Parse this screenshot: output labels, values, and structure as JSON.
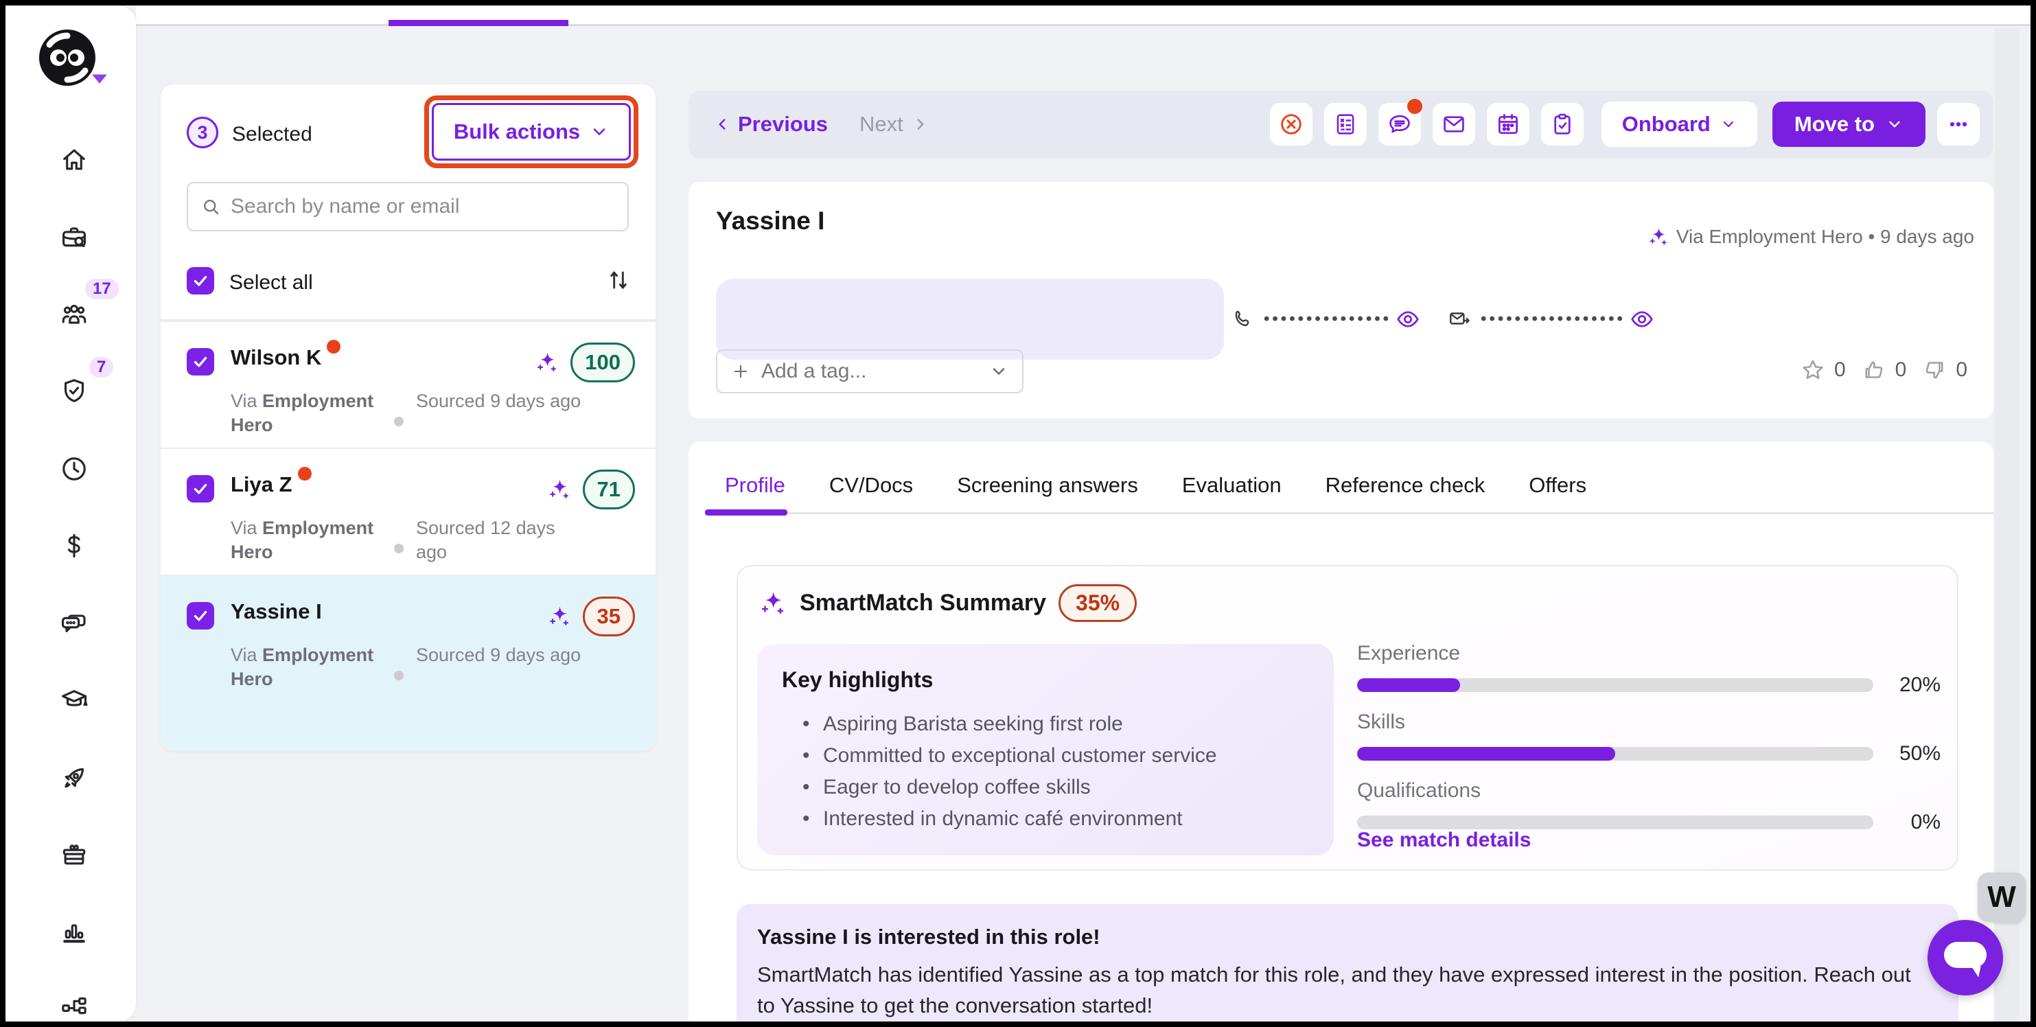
{
  "sidebar": {
    "badges": {
      "people": "17",
      "approvals": "7"
    }
  },
  "list_panel": {
    "selected_count": "3",
    "selected_label": "Selected",
    "bulk_actions_label": "Bulk actions",
    "search_placeholder": "Search by name or email",
    "select_all_label": "Select all",
    "candidates": [
      {
        "name": "Wilson K",
        "unread": true,
        "score": "100",
        "via_prefix": "Via ",
        "source": "Employment Hero",
        "sourced": "Sourced 9 days ago"
      },
      {
        "name": "Liya Z",
        "unread": true,
        "score": "71",
        "via_prefix": "Via ",
        "source": "Employment Hero",
        "sourced": "Sourced 12 days ago"
      },
      {
        "name": "Yassine I",
        "unread": false,
        "score": "35",
        "via_prefix": "Via ",
        "source": "Employment Hero",
        "sourced": "Sourced 9 days ago"
      }
    ]
  },
  "toolbar": {
    "previous_label": "Previous",
    "next_label": "Next",
    "onboard_label": "Onboard",
    "move_to_label": "Move to"
  },
  "candidate": {
    "name": "Yassine I",
    "source_meta": "Via Employment Hero • 9 days ago",
    "phone_mask": "•••••••••••••••",
    "email_mask": "•••••••••••••••••",
    "add_tag_placeholder": "Add a tag...",
    "star_count": "0",
    "thumbs_up_count": "0",
    "thumbs_down_count": "0"
  },
  "tabs": {
    "items": [
      "Profile",
      "CV/Docs",
      "Screening answers",
      "Evaluation",
      "Reference check",
      "Offers"
    ],
    "active": "Profile"
  },
  "smartmatch": {
    "title": "SmartMatch Summary",
    "score": "35%",
    "highlights_title": "Key highlights",
    "highlights": [
      "Aspiring Barista seeking first role",
      "Committed to exceptional customer service",
      "Eager to develop coffee skills",
      "Interested in dynamic café environment"
    ],
    "metrics": [
      {
        "label": "Experience",
        "value": 20,
        "pct": "20%"
      },
      {
        "label": "Skills",
        "value": 50,
        "pct": "50%"
      },
      {
        "label": "Qualifications",
        "value": 0,
        "pct": "0%"
      }
    ],
    "details_link": "See match details"
  },
  "banner": {
    "title": "Yassine I is interested in this role!",
    "body": "SmartMatch has identified Yassine as a top match for this role, and they have expressed interest in the position. Reach out to Yassine to get the conversation started!"
  },
  "widgets": {
    "w_badge": "W"
  },
  "colors": {
    "accent_purple": "#7A1FE0",
    "annotation_red": "#E2471E",
    "score_green": "#0E6E54",
    "score_rust": "#C23412",
    "selected_row": "#E2F4F9"
  }
}
